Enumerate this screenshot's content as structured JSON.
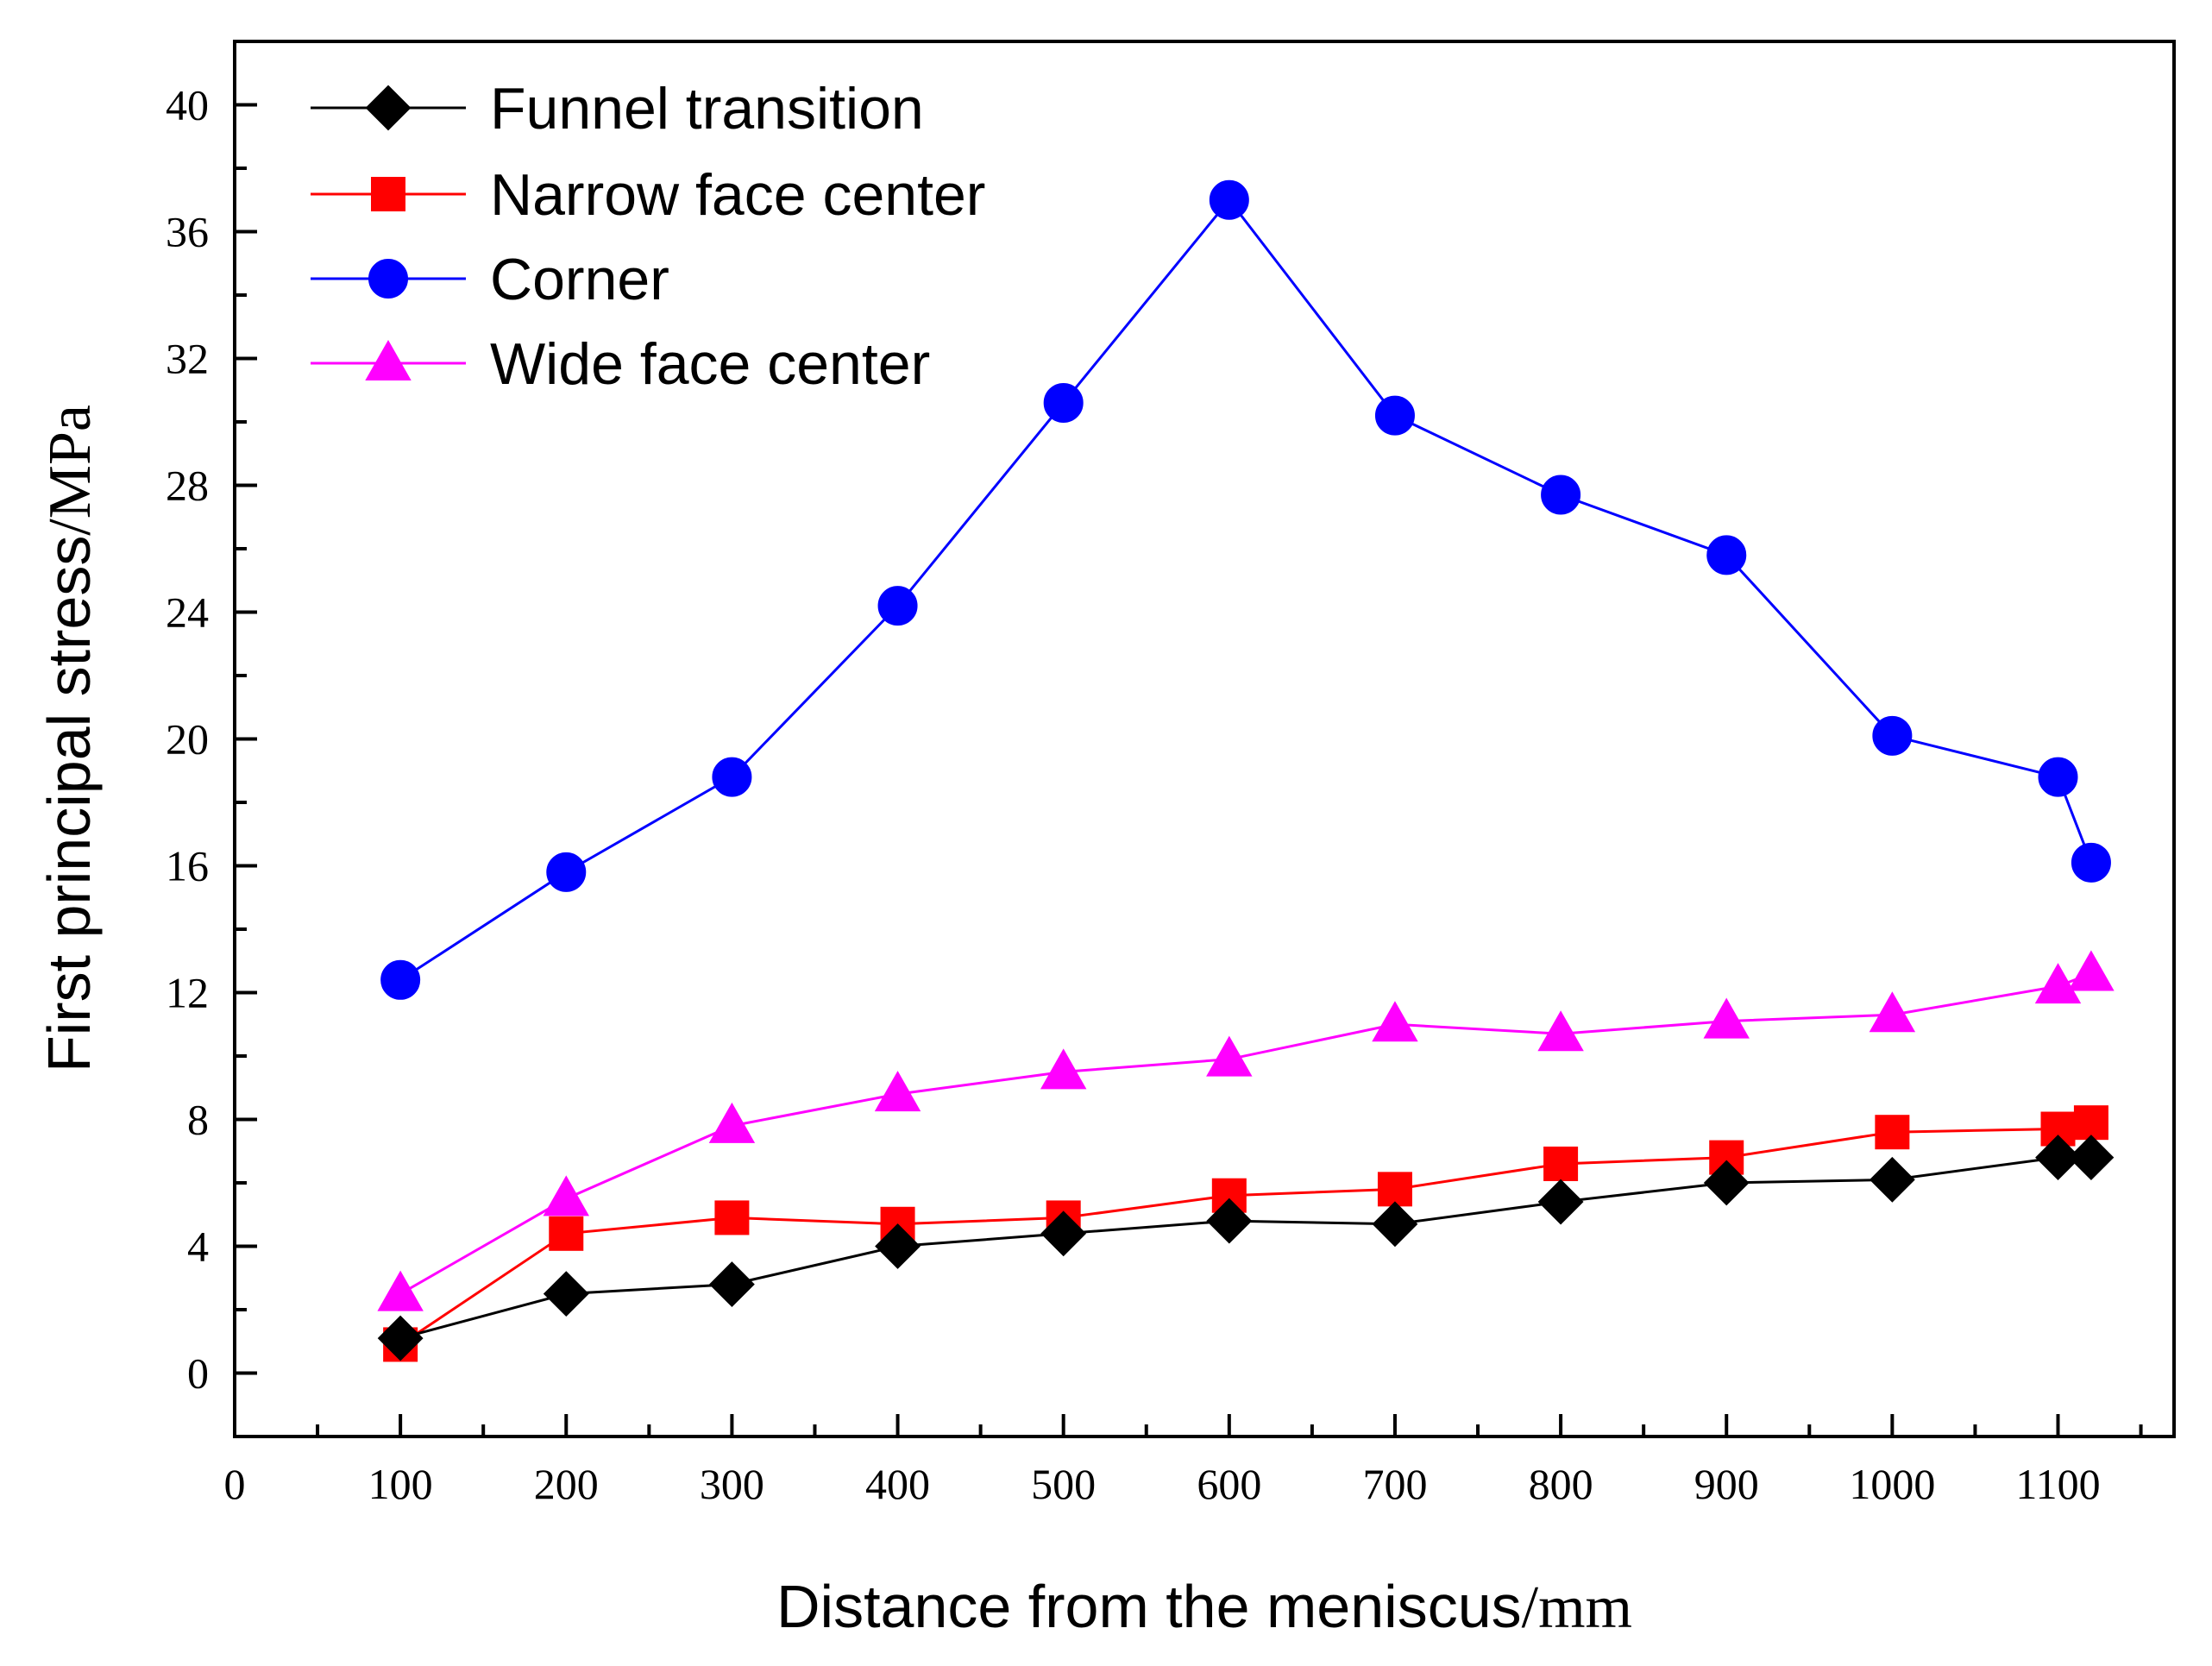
{
  "chart_data": {
    "type": "line",
    "title": "",
    "xlabel": {
      "main": "Distance from the meniscus",
      "unit": "/mm"
    },
    "ylabel": {
      "main": "First principal stress",
      "unit": "/MPa"
    },
    "xlim": [
      0,
      1170
    ],
    "ylim": [
      -2,
      42
    ],
    "xticks": [
      0,
      100,
      200,
      300,
      400,
      500,
      600,
      700,
      800,
      900,
      1000,
      1100
    ],
    "yticks": [
      0,
      4,
      8,
      12,
      16,
      20,
      24,
      28,
      32,
      36,
      40
    ],
    "grid": false,
    "legend_position": "top-left",
    "x": [
      100,
      200,
      300,
      400,
      500,
      600,
      700,
      800,
      900,
      1000,
      1100,
      1120
    ],
    "series": [
      {
        "name": "Funnel transition",
        "color": "#000000",
        "marker": "diamond",
        "values": [
          1.1,
          2.5,
          2.8,
          4.0,
          4.4,
          4.8,
          4.7,
          5.4,
          6.0,
          6.1,
          6.8,
          6.8
        ]
      },
      {
        "name": "Narrow face center",
        "color": "#ff0000",
        "marker": "square",
        "values": [
          0.9,
          4.4,
          4.9,
          4.7,
          4.9,
          5.6,
          5.8,
          6.6,
          6.8,
          7.6,
          7.7,
          7.9
        ]
      },
      {
        "name": "Corner",
        "color": "#0000ff",
        "marker": "circle",
        "values": [
          12.4,
          15.8,
          18.8,
          24.2,
          30.6,
          37.0,
          30.2,
          27.7,
          25.8,
          20.1,
          18.8,
          16.1
        ]
      },
      {
        "name": "Wide face center",
        "color": "#ff00ff",
        "marker": "triangle",
        "values": [
          2.5,
          5.5,
          7.8,
          8.8,
          9.5,
          9.9,
          11.0,
          10.7,
          11.1,
          11.3,
          12.2,
          12.6
        ]
      }
    ]
  }
}
